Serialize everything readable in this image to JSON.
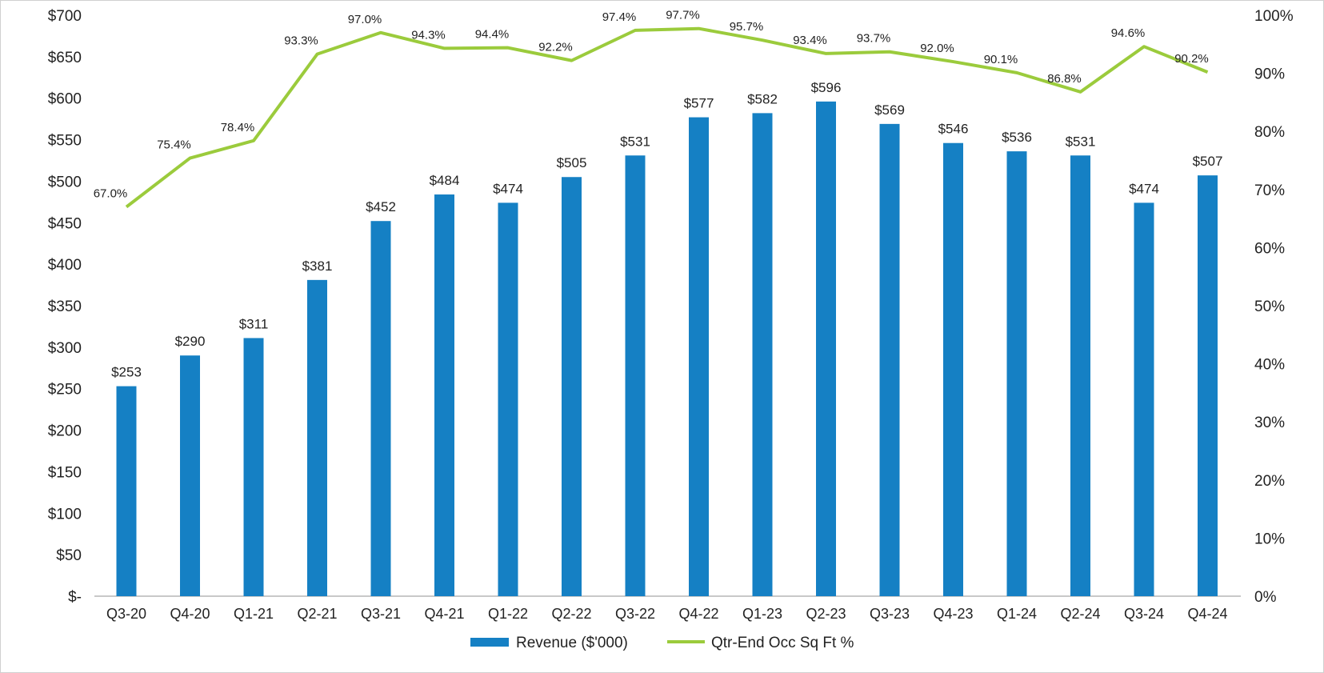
{
  "chart_data": {
    "type": "bar+line",
    "categories": [
      "Q3-20",
      "Q4-20",
      "Q1-21",
      "Q2-21",
      "Q3-21",
      "Q4-21",
      "Q1-22",
      "Q2-22",
      "Q3-22",
      "Q4-22",
      "Q1-23",
      "Q2-23",
      "Q3-23",
      "Q4-23",
      "Q1-24",
      "Q2-24",
      "Q3-24",
      "Q4-24"
    ],
    "series": [
      {
        "name": "Revenue ($'000)",
        "type": "bar",
        "axis": "left",
        "color": "#1580C4",
        "values": [
          253,
          290,
          311,
          381,
          452,
          484,
          474,
          505,
          531,
          577,
          582,
          596,
          569,
          546,
          536,
          531,
          474,
          507
        ],
        "labels": [
          "$253",
          "$290",
          "$311",
          "$381",
          "$452",
          "$484",
          "$474",
          "$505",
          "$531",
          "$577",
          "$582",
          "$596",
          "$569",
          "$546",
          "$536",
          "$531",
          "$474",
          "$507"
        ]
      },
      {
        "name": "Qtr-End Occ Sq Ft %",
        "type": "line",
        "axis": "right",
        "color": "#9BCB3C",
        "values": [
          67.0,
          75.4,
          78.4,
          93.3,
          97.0,
          94.3,
          94.4,
          92.2,
          97.4,
          97.7,
          95.7,
          93.4,
          93.7,
          92.0,
          90.1,
          86.8,
          94.6,
          90.2
        ],
        "labels": [
          "67.0%",
          "75.4%",
          "78.4%",
          "93.3%",
          "97.0%",
          "94.3%",
          "94.4%",
          "92.2%",
          "97.4%",
          "97.7%",
          "95.7%",
          "93.4%",
          "93.7%",
          "92.0%",
          "90.1%",
          "86.8%",
          "94.6%",
          "90.2%"
        ]
      }
    ],
    "y_left": {
      "range": [
        0,
        700
      ],
      "ticks": [
        0,
        50,
        100,
        150,
        200,
        250,
        300,
        350,
        400,
        450,
        500,
        550,
        600,
        650,
        700
      ],
      "tick_labels": [
        "$-",
        "$50",
        "$100",
        "$150",
        "$200",
        "$250",
        "$300",
        "$350",
        "$400",
        "$450",
        "$500",
        "$550",
        "$600",
        "$650",
        "$700"
      ]
    },
    "y_right": {
      "range": [
        0,
        100
      ],
      "ticks": [
        0,
        10,
        20,
        30,
        40,
        50,
        60,
        70,
        80,
        90,
        100
      ],
      "tick_labels": [
        "0%",
        "10%",
        "20%",
        "30%",
        "40%",
        "50%",
        "60%",
        "70%",
        "80%",
        "90%",
        "100%"
      ]
    },
    "grid": false,
    "legend": {
      "placement": "bottom",
      "entries": [
        "Revenue ($'000)",
        "Qtr-End Occ Sq Ft %"
      ]
    },
    "title": "",
    "xlabel": "",
    "ylabel": ""
  }
}
